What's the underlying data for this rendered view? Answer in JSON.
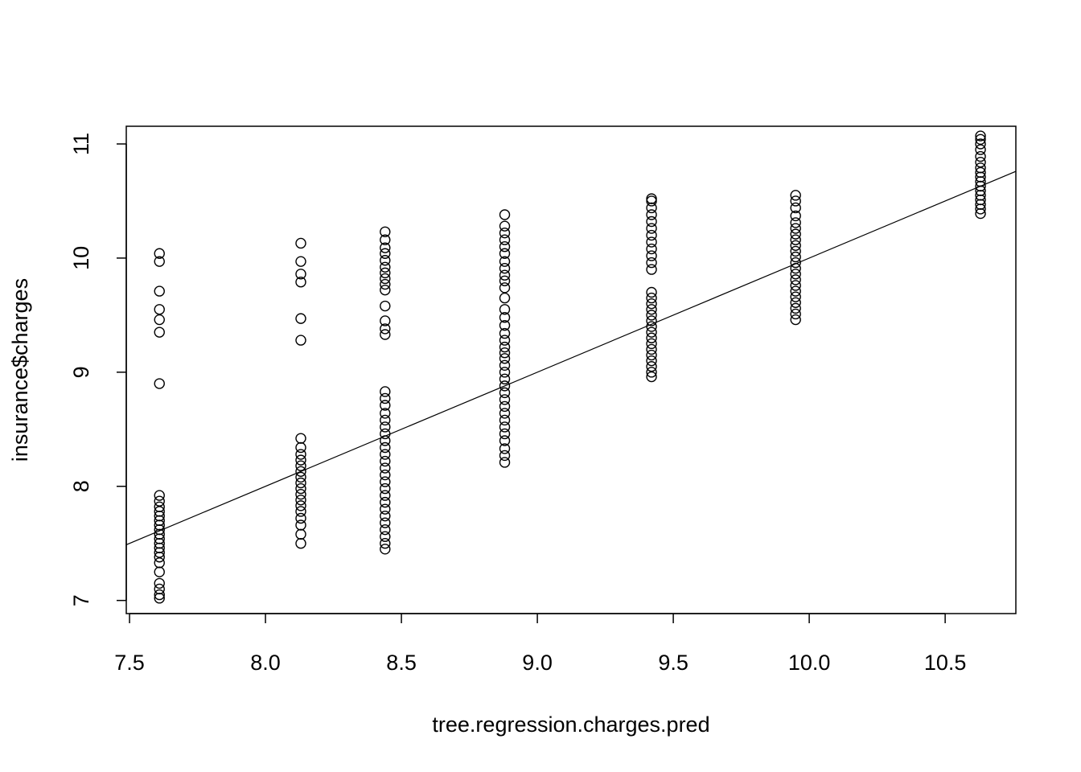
{
  "chart_data": {
    "type": "scatter",
    "title": "",
    "xlabel": "tree.regression.charges.pred",
    "ylabel": "insurance$charges",
    "xlim": [
      7.488,
      10.76
    ],
    "ylim": [
      6.885,
      11.155
    ],
    "x_ticks": [
      7.5,
      8.0,
      8.5,
      9.0,
      9.5,
      10.0,
      10.5
    ],
    "x_tick_labels": [
      "7.5",
      "8.0",
      "8.5",
      "9.0",
      "9.5",
      "10.0",
      "10.5"
    ],
    "y_ticks": [
      7,
      8,
      9,
      10,
      11
    ],
    "y_tick_labels": [
      "7",
      "8",
      "9",
      "10",
      "11"
    ],
    "grid": false,
    "legend": "none",
    "reference_line": {
      "intercept": 0,
      "slope": 1
    },
    "columns": [
      {
        "x": 7.61,
        "y": [
          7.02,
          7.05,
          7.1,
          7.15,
          7.25,
          7.33,
          7.38,
          7.42,
          7.46,
          7.5,
          7.54,
          7.58,
          7.62,
          7.66,
          7.7,
          7.74,
          7.78,
          7.82,
          7.87,
          7.92,
          8.9,
          9.35,
          9.46,
          9.55,
          9.71,
          9.97,
          10.04
        ]
      },
      {
        "x": 8.13,
        "y": [
          7.5,
          7.58,
          7.66,
          7.72,
          7.78,
          7.83,
          7.88,
          7.93,
          7.98,
          8.03,
          8.08,
          8.13,
          8.18,
          8.23,
          8.28,
          8.34,
          8.42,
          9.28,
          9.47,
          9.79,
          9.86,
          9.97,
          10.13
        ]
      },
      {
        "x": 8.44,
        "y": [
          7.45,
          7.5,
          7.56,
          7.62,
          7.68,
          7.74,
          7.8,
          7.86,
          7.92,
          7.98,
          8.04,
          8.1,
          8.16,
          8.22,
          8.28,
          8.34,
          8.4,
          8.46,
          8.52,
          8.58,
          8.64,
          8.71,
          8.77,
          8.83,
          9.33,
          9.38,
          9.45,
          9.58,
          9.72,
          9.77,
          9.82,
          9.87,
          9.92,
          9.98,
          10.04,
          10.09,
          10.16,
          10.23
        ]
      },
      {
        "x": 8.88,
        "y": [
          8.21,
          8.27,
          8.33,
          8.4,
          8.46,
          8.52,
          8.58,
          8.64,
          8.7,
          8.76,
          8.82,
          8.88,
          8.94,
          9.0,
          9.06,
          9.12,
          9.17,
          9.22,
          9.28,
          9.34,
          9.41,
          9.48,
          9.55,
          9.65,
          9.74,
          9.8,
          9.85,
          9.91,
          9.97,
          10.04,
          10.1,
          10.16,
          10.22,
          10.28,
          10.38
        ]
      },
      {
        "x": 9.42,
        "y": [
          8.96,
          9.0,
          9.05,
          9.1,
          9.15,
          9.2,
          9.25,
          9.3,
          9.35,
          9.4,
          9.45,
          9.5,
          9.55,
          9.6,
          9.65,
          9.7,
          9.9,
          9.96,
          10.02,
          10.08,
          10.14,
          10.2,
          10.26,
          10.32,
          10.38,
          10.44,
          10.5,
          10.52
        ]
      },
      {
        "x": 9.95,
        "y": [
          9.46,
          9.51,
          9.56,
          9.61,
          9.66,
          9.71,
          9.76,
          9.81,
          9.86,
          9.91,
          9.96,
          10.01,
          10.06,
          10.11,
          10.16,
          10.21,
          10.26,
          10.31,
          10.37,
          10.44,
          10.5,
          10.55
        ]
      },
      {
        "x": 10.63,
        "y": [
          10.39,
          10.43,
          10.47,
          10.51,
          10.55,
          10.59,
          10.63,
          10.67,
          10.71,
          10.75,
          10.79,
          10.84,
          10.89,
          10.95,
          11.0,
          11.04,
          11.07
        ]
      }
    ]
  }
}
